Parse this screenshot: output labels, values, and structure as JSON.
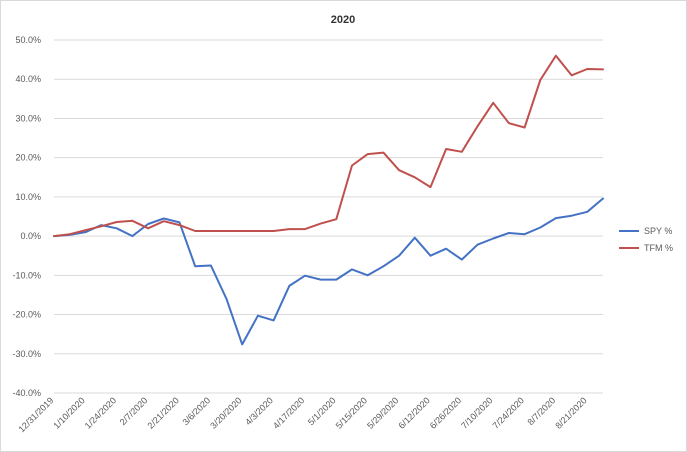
{
  "chart_data": {
    "type": "line",
    "title": "2020",
    "xlabel": "",
    "ylabel": "",
    "ylim": [
      -0.4,
      0.5
    ],
    "ytick_labels": [
      "50.0%",
      "40.0%",
      "30.0%",
      "20.0%",
      "10.0%",
      "0.0%",
      "-10.0%",
      "-20.0%",
      "-30.0%",
      "-40.0%"
    ],
    "ytick_values": [
      0.5,
      0.4,
      0.3,
      0.2,
      0.1,
      0.0,
      -0.1,
      -0.2,
      -0.3,
      -0.4
    ],
    "x": [
      "12/31/2019",
      "1/3/2020",
      "1/10/2020",
      "1/17/2020",
      "1/24/2020",
      "1/31/2020",
      "2/7/2020",
      "2/14/2020",
      "2/21/2020",
      "2/28/2020",
      "3/6/2020",
      "3/13/2020",
      "3/20/2020",
      "3/27/2020",
      "4/3/2020",
      "4/10/2020",
      "4/17/2020",
      "4/24/2020",
      "5/1/2020",
      "5/8/2020",
      "5/15/2020",
      "5/22/2020",
      "5/29/2020",
      "6/5/2020",
      "6/12/2020",
      "6/19/2020",
      "6/26/2020",
      "7/3/2020",
      "7/10/2020",
      "7/17/2020",
      "7/24/2020",
      "7/31/2020",
      "8/7/2020",
      "8/14/2020",
      "8/21/2020",
      "8/28/2020"
    ],
    "xtick_labels": [
      "12/31/2019",
      "1/10/2020",
      "1/24/2020",
      "2/7/2020",
      "2/21/2020",
      "3/6/2020",
      "3/20/2020",
      "4/3/2020",
      "4/17/2020",
      "5/1/2020",
      "5/15/2020",
      "5/29/2020",
      "6/12/2020",
      "6/26/2020",
      "7/10/2020",
      "7/24/2020",
      "8/7/2020",
      "8/21/2020"
    ],
    "xtick_indices": [
      0,
      2,
      4,
      6,
      8,
      10,
      12,
      14,
      16,
      18,
      20,
      22,
      24,
      26,
      28,
      30,
      32,
      34
    ],
    "series": [
      {
        "name": "SPY %",
        "color": "#4472c4",
        "values": [
          0.0,
          0.003,
          0.01,
          0.028,
          0.02,
          0.0,
          0.031,
          0.045,
          0.035,
          -0.077,
          -0.075,
          -0.16,
          -0.276,
          -0.203,
          -0.215,
          -0.127,
          -0.101,
          -0.111,
          -0.111,
          -0.085,
          -0.1,
          -0.077,
          -0.05,
          -0.004,
          -0.05,
          -0.032,
          -0.06,
          -0.022,
          -0.006,
          0.008,
          0.005,
          0.022,
          0.046,
          0.052,
          0.062,
          0.096
        ]
      },
      {
        "name": "TFM %",
        "color": "#c0504d",
        "values": [
          0.0,
          0.005,
          0.015,
          0.025,
          0.036,
          0.039,
          0.02,
          0.038,
          0.028,
          0.013,
          0.013,
          0.013,
          0.013,
          0.013,
          0.013,
          0.018,
          0.018,
          0.032,
          0.043,
          0.18,
          0.209,
          0.213,
          0.168,
          0.15,
          0.125,
          0.222,
          0.215,
          0.28,
          0.34,
          0.288,
          0.277,
          0.398,
          0.46,
          0.41,
          0.426,
          0.425
        ]
      }
    ],
    "grid": true,
    "legend_position": "right"
  }
}
